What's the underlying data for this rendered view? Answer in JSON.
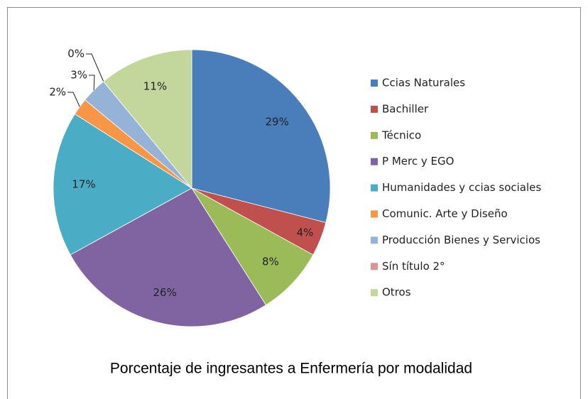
{
  "chart_data": {
    "type": "pie",
    "title": "Porcentaje de ingresantes a Enfermería por modalidad",
    "categories": [
      "Ccias Naturales",
      "Bachiller",
      "Técnico",
      "P Merc y EGO",
      "Humanidades y ccias sociales",
      "Comunic. Arte y Diseño",
      "Producción Bienes y Servicios",
      "Sín título 2°",
      "Otros"
    ],
    "values": [
      29,
      4,
      8,
      26,
      17,
      2,
      3,
      0,
      11
    ],
    "value_labels": [
      "29%",
      "4%",
      "8%",
      "26%",
      "17%",
      "2%",
      "3%",
      "0%",
      "11%"
    ],
    "colors": [
      "#4a7ebb",
      "#c0504d",
      "#9bbb59",
      "#8064a2",
      "#4bacc6",
      "#f79646",
      "#95b3d7",
      "#d99694",
      "#c3d69b"
    ],
    "legend": "right"
  }
}
